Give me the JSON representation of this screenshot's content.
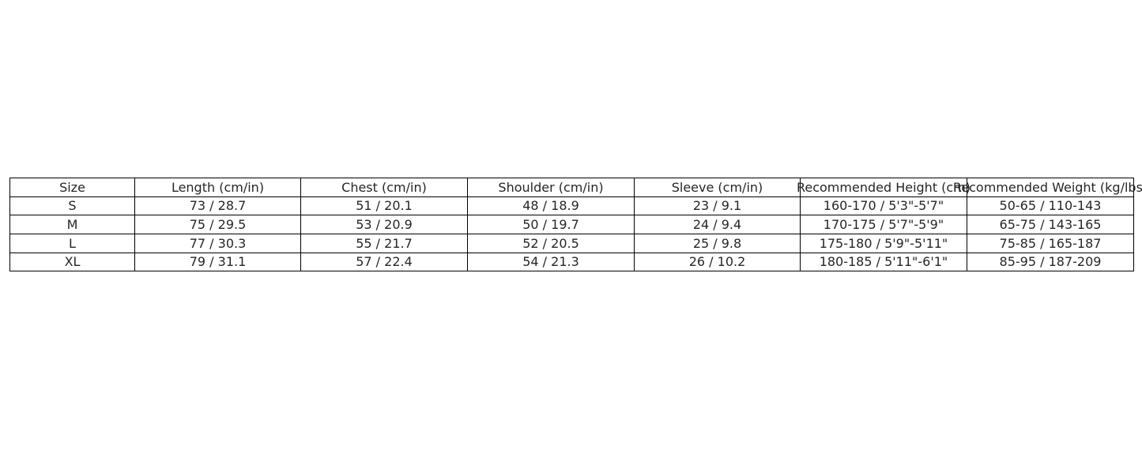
{
  "table": {
    "headers": [
      "Size",
      "Length (cm/in)",
      "Chest (cm/in)",
      "Shoulder (cm/in)",
      "Sleeve (cm/in)",
      "Recommended Height (cm)",
      "Recommended Weight (kg/lbs)"
    ],
    "rows": [
      [
        "S",
        "73 / 28.7",
        "51 / 20.1",
        "48 / 18.9",
        "23 / 9.1",
        "160-170 / 5'3\"-5'7\"",
        "50-65 / 110-143"
      ],
      [
        "M",
        "75 / 29.5",
        "53 / 20.9",
        "50 / 19.7",
        "24 / 9.4",
        "170-175 / 5'7\"-5'9\"",
        "65-75 / 143-165"
      ],
      [
        "L",
        "77 / 30.3",
        "55 / 21.7",
        "52 / 20.5",
        "25 / 9.8",
        "175-180 / 5'9\"-5'11\"",
        "75-85 / 165-187"
      ],
      [
        "XL",
        "79 / 31.1",
        "57 / 22.4",
        "54 / 21.3",
        "26 / 10.2",
        "180-185 / 5'11\"-6'1\"",
        "85-95 / 187-209"
      ]
    ]
  }
}
